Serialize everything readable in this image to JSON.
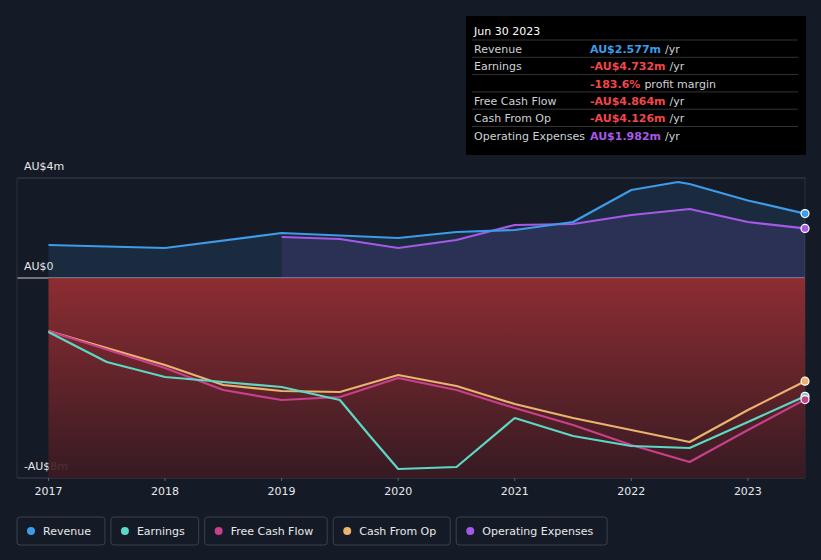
{
  "chart_data": {
    "type": "line",
    "xlim": [
      2016.73,
      2023.49
    ],
    "xticks": [
      2017,
      2018,
      2019,
      2020,
      2021,
      2022,
      2023
    ],
    "ylim": [
      -8,
      4
    ],
    "yticks": [
      {
        "value": 4,
        "label": "AU$4m"
      },
      {
        "value": 0,
        "label": "AU$0"
      },
      {
        "value": -8,
        "label": "-AU$8m"
      }
    ],
    "grid": true,
    "legend": "bottom",
    "series": [
      {
        "name": "Revenue",
        "color": "#3d9be9",
        "x": [
          2017,
          2018,
          2019,
          2020,
          2020.5,
          2021,
          2021.5,
          2022,
          2022.4,
          2022.5,
          2023,
          2023.49
        ],
        "values": [
          1.32,
          1.2,
          1.8,
          1.6,
          1.84,
          1.92,
          2.24,
          3.52,
          3.84,
          3.76,
          3.1,
          2.577
        ]
      },
      {
        "name": "Earnings",
        "color": "#5dd8c4",
        "x": [
          2017,
          2017.5,
          2018,
          2018.5,
          2019,
          2019.5,
          2019.75,
          2020,
          2020.5,
          2021,
          2021.5,
          2022,
          2022.5,
          2023,
          2023.49
        ],
        "values": [
          -2.16,
          -3.36,
          -3.96,
          -4.16,
          -4.36,
          -4.88,
          -6.28,
          -7.64,
          -7.56,
          -5.6,
          -6.32,
          -6.72,
          -6.8,
          -5.76,
          -4.732
        ]
      },
      {
        "name": "Free Cash Flow",
        "color": "#c8408c",
        "x": [
          2017,
          2018,
          2018.5,
          2019,
          2019.5,
          2020,
          2020.5,
          2021,
          2021.5,
          2022,
          2022.5,
          2023,
          2023.49
        ],
        "values": [
          -2.12,
          -3.6,
          -4.48,
          -4.88,
          -4.76,
          -4.0,
          -4.48,
          -5.2,
          -5.88,
          -6.68,
          -7.36,
          -6.08,
          -4.864
        ]
      },
      {
        "name": "Cash From Op",
        "color": "#eab36e",
        "x": [
          2017,
          2018,
          2018.5,
          2019,
          2019.5,
          2020,
          2020.5,
          2021,
          2021.5,
          2022,
          2022.5,
          2023,
          2023.49
        ],
        "values": [
          -2.12,
          -3.48,
          -4.28,
          -4.52,
          -4.56,
          -3.88,
          -4.32,
          -5.04,
          -5.6,
          -6.08,
          -6.56,
          -5.28,
          -4.126
        ]
      },
      {
        "name": "Operating Expenses",
        "color": "#a659e6",
        "x": [
          2019,
          2019.5,
          2020,
          2020.5,
          2021,
          2021.5,
          2022,
          2022.5,
          2023,
          2023.49
        ],
        "values": [
          1.64,
          1.56,
          1.2,
          1.52,
          2.12,
          2.16,
          2.52,
          2.76,
          2.24,
          1.982
        ]
      }
    ],
    "tooltip": {
      "date": "Jun 30 2023",
      "rows": [
        {
          "label": "Revenue",
          "value": "AU$2.577m",
          "unit": "/yr",
          "color": "#3d9be9"
        },
        {
          "label": "Earnings",
          "value": "-AU$4.732m",
          "unit": "/yr",
          "color": "#f0474a"
        },
        {
          "value": "-183.6%",
          "unit": "profit margin",
          "color": "#f0474a"
        },
        {
          "label": "Free Cash Flow",
          "value": "-AU$4.864m",
          "unit": "/yr",
          "color": "#f0474a"
        },
        {
          "label": "Cash From Op",
          "value": "-AU$4.126m",
          "unit": "/yr",
          "color": "#f0474a"
        },
        {
          "label": "Operating Expenses",
          "value": "AU$1.982m",
          "unit": "/yr",
          "color": "#a659e6"
        }
      ]
    }
  }
}
